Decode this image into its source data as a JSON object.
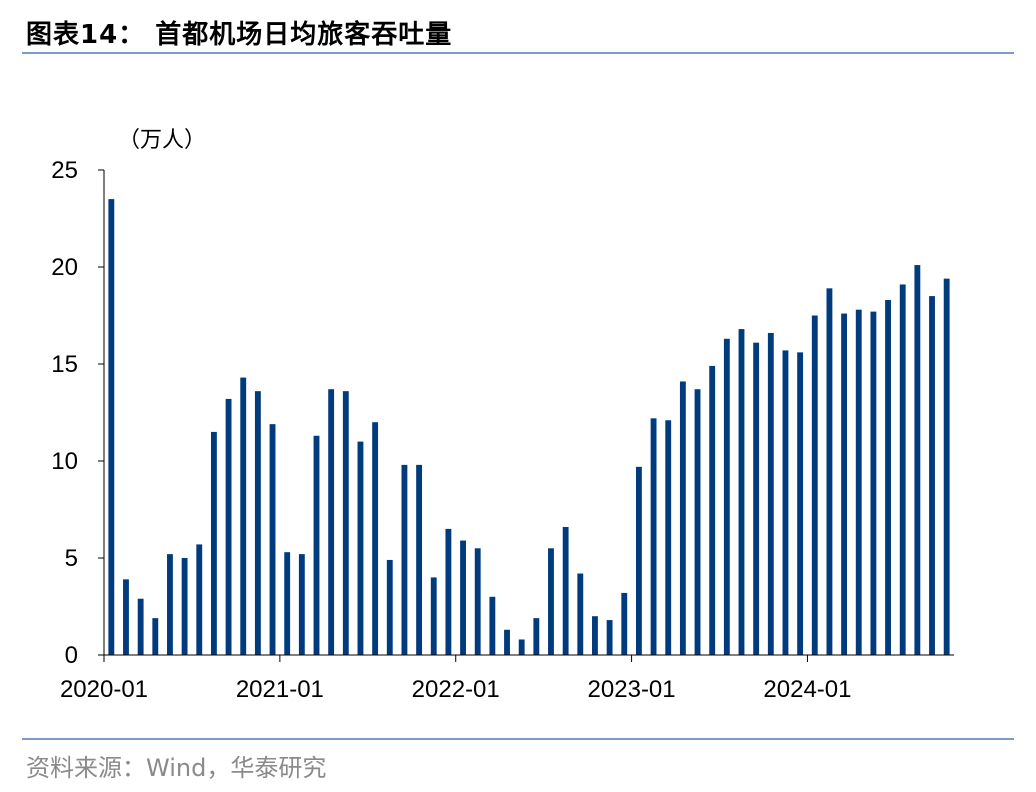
{
  "header": {
    "title": "图表14：  首都机场日均旅客吞吐量"
  },
  "footer": {
    "source": "资料来源：Wind，华泰研究"
  },
  "colors": {
    "bar": "#003b7d",
    "rule": "#7a9cc6",
    "axis": "#000000",
    "source_text": "#8a8a8a"
  },
  "chart_data": {
    "type": "bar",
    "title": "首都机场日均旅客吞吐量",
    "ylabel": "（万人）",
    "xlabel": "",
    "ylim": [
      0,
      25
    ],
    "yticks": [
      0,
      5,
      10,
      15,
      20,
      25
    ],
    "x_tick_labels": [
      "2020-01",
      "2021-01",
      "2022-01",
      "2023-01",
      "2024-01"
    ],
    "grid": false,
    "legend": "none",
    "categories": [
      "2020-01",
      "2020-02",
      "2020-03",
      "2020-04",
      "2020-05",
      "2020-06",
      "2020-07",
      "2020-08",
      "2020-09",
      "2020-10",
      "2020-11",
      "2020-12",
      "2021-01",
      "2021-02",
      "2021-03",
      "2021-04",
      "2021-05",
      "2021-06",
      "2021-07",
      "2021-08",
      "2021-09",
      "2021-10",
      "2021-11",
      "2021-12",
      "2022-01",
      "2022-02",
      "2022-03",
      "2022-04",
      "2022-05",
      "2022-06",
      "2022-07",
      "2022-08",
      "2022-09",
      "2022-10",
      "2022-11",
      "2022-12",
      "2023-01",
      "2023-02",
      "2023-03",
      "2023-04",
      "2023-05",
      "2023-06",
      "2023-07",
      "2023-08",
      "2023-09",
      "2023-10",
      "2023-11",
      "2023-12",
      "2024-01",
      "2024-02",
      "2024-03",
      "2024-04",
      "2024-05",
      "2024-06",
      "2024-07",
      "2024-08",
      "2024-09",
      "2024-10"
    ],
    "values": [
      23.5,
      3.9,
      2.9,
      1.9,
      5.2,
      5.0,
      5.7,
      11.5,
      13.2,
      14.3,
      13.6,
      11.9,
      5.3,
      5.2,
      11.3,
      13.7,
      13.6,
      11.0,
      12.0,
      4.9,
      9.8,
      9.8,
      4.0,
      6.5,
      5.9,
      5.5,
      3.0,
      1.3,
      0.8,
      1.9,
      5.5,
      6.6,
      4.2,
      2.0,
      1.8,
      3.2,
      9.7,
      12.2,
      12.1,
      14.1,
      13.7,
      14.9,
      16.3,
      16.8,
      16.1,
      16.6,
      15.7,
      15.6,
      17.5,
      18.9,
      17.6,
      17.8,
      17.7,
      18.3,
      19.1,
      20.1,
      18.5,
      19.4
    ]
  }
}
